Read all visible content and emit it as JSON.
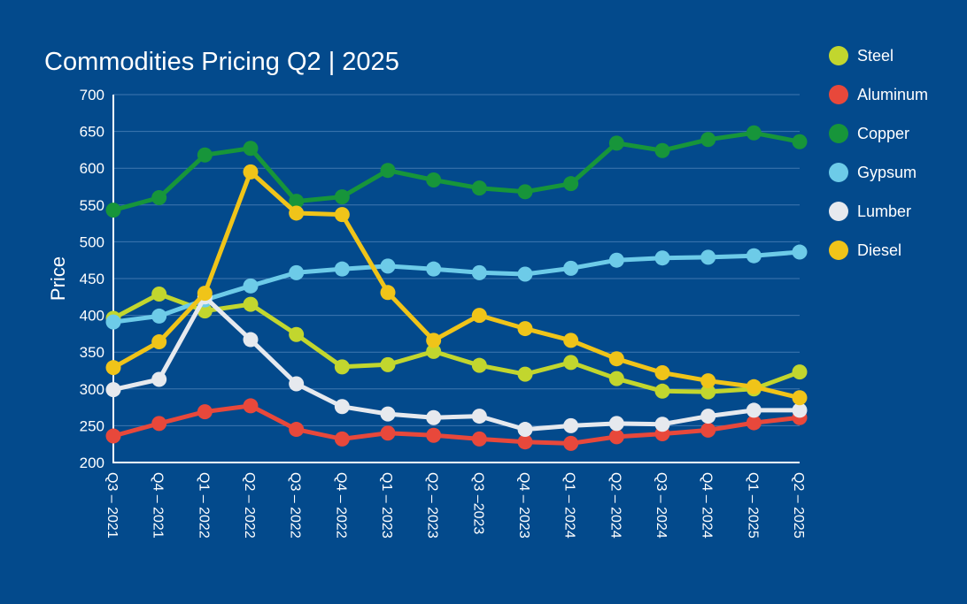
{
  "colors": {
    "background": "#034a8c",
    "grid": "#3f77b0",
    "axis": "#ffffff",
    "text": "#ffffff"
  },
  "chart_data": {
    "type": "line",
    "title": "Commodities Pricing Q2 | 2025",
    "xlabel": "",
    "ylabel": "Price",
    "ylim": [
      200,
      700
    ],
    "yticks": [
      200,
      250,
      300,
      350,
      400,
      450,
      500,
      550,
      600,
      650,
      700
    ],
    "grid": true,
    "legend_position": "right",
    "categories": [
      "Q3 – 2021",
      "Q4 – 2021",
      "Q1 – 2022",
      "Q2 – 2022",
      "Q3 – 2022",
      "Q4 – 2022",
      "Q1 – 2023",
      "Q2 – 2023",
      "Q3 –2023",
      "Q4 – 2023",
      "Q1 – 2024",
      "Q2 – 2024",
      "Q3 – 2024",
      "Q4 – 2024",
      "Q1 – 2025",
      "Q2 – 2025"
    ],
    "series": [
      {
        "name": "Steel",
        "color": "#c2d62e",
        "values": [
          396,
          429,
          406,
          415,
          374,
          330,
          333,
          351,
          332,
          320,
          336,
          314,
          297,
          296,
          300,
          323
        ]
      },
      {
        "name": "Aluminum",
        "color": "#e8483b",
        "values": [
          236,
          253,
          269,
          277,
          245,
          232,
          240,
          237,
          232,
          228,
          226,
          235,
          239,
          244,
          254,
          261
        ]
      },
      {
        "name": "Copper",
        "color": "#17953a",
        "values": [
          543,
          560,
          618,
          627,
          555,
          561,
          597,
          584,
          573,
          568,
          579,
          634,
          624,
          639,
          648,
          636
        ]
      },
      {
        "name": "Gypsum",
        "color": "#6dcbe8",
        "values": [
          391,
          399,
          421,
          440,
          458,
          463,
          467,
          463,
          458,
          456,
          464,
          475,
          478,
          479,
          481,
          486
        ]
      },
      {
        "name": "Lumber",
        "color": "#e6e9ee",
        "values": [
          299,
          313,
          425,
          367,
          307,
          276,
          266,
          261,
          263,
          245,
          250,
          253,
          252,
          263,
          271,
          271
        ]
      },
      {
        "name": "Diesel",
        "color": "#f0c419",
        "values": [
          329,
          364,
          430,
          595,
          539,
          537,
          431,
          366,
          400,
          382,
          366,
          341,
          322,
          311,
          303,
          288
        ]
      }
    ]
  }
}
